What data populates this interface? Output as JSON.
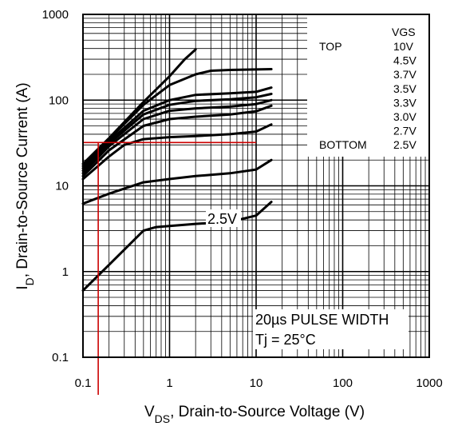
{
  "chart_data": {
    "type": "line",
    "x_scale": "log",
    "y_scale": "log",
    "xlim": [
      0.1,
      1000
    ],
    "ylim": [
      0.1,
      1000
    ],
    "grid": true,
    "x_ticks": [
      "0.1",
      "1",
      "10",
      "100",
      "1000"
    ],
    "y_ticks": [
      "0.1",
      "1",
      "10",
      "100",
      "1000"
    ],
    "xlabel_pre": "V",
    "xlabel_sub": "DS",
    "xlabel_post": ", Drain-to-Source Voltage (V)",
    "ylabel_pre": "I",
    "ylabel_sub": "D",
    "ylabel_post": ", Drain-to-Source Current (A)",
    "legend": {
      "heading": "VGS",
      "top_label": "TOP",
      "bottom_label": "BOTTOM",
      "entries": [
        "10V",
        "4.5V",
        "3.7V",
        "3.5V",
        "3.3V",
        "3.0V",
        "2.7V",
        "2.5V"
      ]
    },
    "curve_label": "2.5V",
    "annotation_line1": "20µs PULSE WIDTH",
    "annotation_line2": "Tj = 25°C",
    "series": [
      {
        "name": "10V",
        "x": [
          0.1,
          0.2,
          0.5,
          1,
          1.5,
          2
        ],
        "y": [
          18,
          36,
          95,
          190,
          300,
          390
        ]
      },
      {
        "name": "4.5V",
        "x": [
          0.1,
          0.2,
          0.5,
          1,
          2,
          3,
          5,
          10,
          15
        ],
        "y": [
          17,
          35,
          88,
          150,
          200,
          220,
          225,
          228,
          230
        ]
      },
      {
        "name": "3.7V",
        "x": [
          0.1,
          0.2,
          0.5,
          1,
          2,
          5,
          10,
          15
        ],
        "y": [
          16,
          33,
          75,
          100,
          115,
          120,
          125,
          140
        ]
      },
      {
        "name": "3.5V",
        "x": [
          0.1,
          0.2,
          0.5,
          1,
          2,
          5,
          10,
          15
        ],
        "y": [
          15,
          31,
          68,
          88,
          98,
          102,
          108,
          118
        ]
      },
      {
        "name": "3.3V",
        "x": [
          0.1,
          0.2,
          0.5,
          1,
          2,
          5,
          10,
          15
        ],
        "y": [
          14,
          29,
          60,
          75,
          80,
          84,
          90,
          100
        ]
      },
      {
        "name": "3.0V",
        "x": [
          0.1,
          0.2,
          0.5,
          1,
          2,
          5,
          10,
          15
        ],
        "y": [
          13,
          26,
          50,
          60,
          64,
          68,
          74,
          86
        ]
      },
      {
        "name": "2.7V",
        "x": [
          0.1,
          0.2,
          0.3,
          0.5,
          1,
          2,
          5,
          10,
          15
        ],
        "y": [
          12,
          22,
          30,
          35,
          37,
          38,
          40,
          43,
          52
        ]
      },
      {
        "name": "2.5V",
        "x": [
          0.1,
          0.2,
          0.5,
          1,
          2,
          5,
          10,
          15
        ],
        "y": [
          6.2,
          8.1,
          11,
          12,
          13,
          14,
          15.5,
          20
        ]
      },
      {
        "name": "",
        "x": [
          0.1,
          0.2,
          0.5,
          0.7,
          1,
          2,
          5,
          10,
          15
        ],
        "y": [
          0.6,
          1.2,
          3,
          3.3,
          3.4,
          3.6,
          3.8,
          4.5,
          6.5
        ]
      }
    ],
    "marker_lines": {
      "vertical_x": 0.15,
      "horizontal_y": 32,
      "color": "#cc0000"
    }
  }
}
